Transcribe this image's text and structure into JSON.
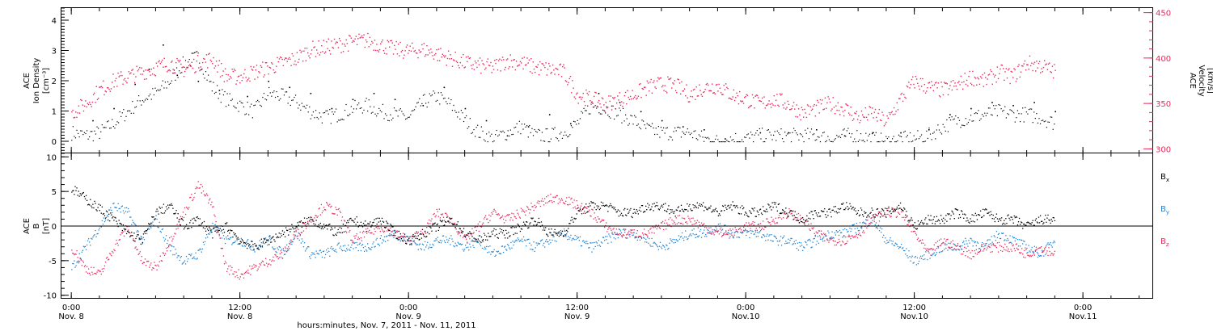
{
  "figure": {
    "x_title": "hours:minutes, Nov.  7, 2011 - Nov. 11, 2011",
    "x_ticks": [
      {
        "hour": 0,
        "top": "0:00",
        "bottom": "Nov. 8"
      },
      {
        "hour": 12,
        "top": "12:00",
        "bottom": "Nov. 8"
      },
      {
        "hour": 24,
        "top": "0:00",
        "bottom": "Nov. 9"
      },
      {
        "hour": 36,
        "top": "12:00",
        "bottom": "Nov. 9"
      },
      {
        "hour": 48,
        "top": "0:00",
        "bottom": "Nov.10"
      },
      {
        "hour": 60,
        "top": "12:00",
        "bottom": "Nov.10"
      },
      {
        "hour": 72,
        "top": "0:00",
        "bottom": "Nov.11"
      }
    ]
  },
  "colors": {
    "density": "#000000",
    "velocity": "#e8285a",
    "bx": "#000000",
    "by": "#1e82d2",
    "bz": "#e8285a"
  },
  "chart_data": [
    {
      "type": "scatter",
      "xlim": [
        -0.7,
        77
      ],
      "ylabel_left": [
        "ACE",
        "Ion Density",
        "[cm⁻³]"
      ],
      "ylim_left": [
        -0.4,
        4.4
      ],
      "yticks_left": [
        0,
        1,
        2,
        3,
        4
      ],
      "ylabel_right": [
        "ACE",
        "Velocity",
        "[km/s]"
      ],
      "ylim_right": [
        295,
        455
      ],
      "yticks_right": [
        300,
        350,
        400,
        450
      ],
      "series": [
        {
          "key": "density",
          "axis": "left",
          "x": [
            0,
            1,
            2,
            3,
            4,
            5,
            6,
            7,
            8,
            9,
            10,
            11,
            12,
            13,
            14,
            15,
            16,
            17,
            18,
            19,
            20,
            21,
            22,
            23,
            24,
            25,
            26,
            27,
            28,
            29,
            30,
            31,
            32,
            33,
            34,
            35,
            36,
            37,
            38,
            39,
            40,
            41,
            42,
            43,
            44,
            45,
            46,
            47,
            48,
            49,
            50,
            51,
            52,
            53,
            54,
            55,
            56,
            57,
            58,
            59,
            60,
            61,
            62,
            63,
            64,
            65,
            66,
            67,
            68,
            69,
            70
          ],
          "y": [
            0.3,
            0.2,
            0.3,
            0.6,
            1.0,
            1.4,
            1.6,
            2.0,
            2.6,
            2.8,
            1.8,
            1.4,
            1.2,
            1.0,
            1.6,
            1.5,
            1.3,
            1.0,
            0.8,
            0.9,
            1.1,
            1.2,
            1.0,
            0.9,
            0.8,
            1.3,
            1.5,
            1.2,
            0.7,
            0.3,
            0.1,
            0.3,
            0.5,
            0.2,
            0.2,
            0.3,
            0.6,
            1.2,
            1.1,
            0.9,
            0.7,
            0.4,
            0.3,
            0.3,
            0.3,
            0.1,
            0.0,
            0.1,
            0.1,
            0.2,
            0.2,
            0.2,
            0.2,
            0.2,
            0.1,
            0.2,
            0.2,
            0.1,
            0.0,
            0.1,
            0.1,
            0.2,
            0.5,
            0.7,
            0.8,
            0.9,
            1.0,
            0.9,
            0.9,
            0.8,
            0.6
          ]
        },
        {
          "key": "velocity",
          "axis": "right",
          "x": [
            0,
            1,
            2,
            3,
            4,
            5,
            6,
            7,
            8,
            9,
            10,
            11,
            12,
            13,
            14,
            15,
            16,
            17,
            18,
            19,
            20,
            21,
            22,
            23,
            24,
            25,
            26,
            27,
            28,
            29,
            30,
            31,
            32,
            33,
            34,
            35,
            36,
            37,
            38,
            39,
            40,
            41,
            42,
            43,
            44,
            45,
            46,
            47,
            48,
            49,
            50,
            51,
            52,
            53,
            54,
            55,
            56,
            57,
            58,
            59,
            60,
            61,
            62,
            63,
            64,
            65,
            66,
            67,
            68,
            69,
            70
          ],
          "y": [
            340,
            350,
            365,
            375,
            380,
            385,
            390,
            395,
            388,
            395,
            400,
            380,
            380,
            385,
            390,
            395,
            400,
            410,
            412,
            415,
            418,
            420,
            415,
            410,
            408,
            410,
            405,
            400,
            395,
            392,
            390,
            398,
            395,
            390,
            388,
            385,
            360,
            355,
            350,
            355,
            360,
            368,
            372,
            370,
            360,
            368,
            370,
            360,
            355,
            350,
            355,
            350,
            340,
            345,
            350,
            345,
            335,
            340,
            330,
            355,
            375,
            368,
            365,
            370,
            380,
            375,
            385,
            380,
            395,
            392,
            385
          ]
        },
        {
          "key": "density_sparse",
          "axis": "left",
          "x": [
            1.5,
            3,
            4.5,
            5.5,
            6.5,
            7.5,
            9,
            10.5,
            12.5,
            14,
            15.5,
            17,
            18.5,
            20,
            21.5,
            23,
            25,
            26.5,
            28,
            29.5,
            31,
            32.5,
            34,
            35.5,
            37.5,
            39,
            40.5,
            42,
            43.5,
            45,
            46.5,
            49,
            51,
            53,
            55,
            57,
            59,
            61,
            62.5,
            64,
            65.5,
            67,
            68.5,
            70
          ],
          "y": [
            0.7,
            1.1,
            1.9,
            2.4,
            3.2,
            2.2,
            2.0,
            1.7,
            1.5,
            2.0,
            1.8,
            1.6,
            1.1,
            1.4,
            1.6,
            1.4,
            1.2,
            1.8,
            1.1,
            0.7,
            0.2,
            0.5,
            0.9,
            0.6,
            1.6,
            1.3,
            1.0,
            0.7,
            0.5,
            0.4,
            0.1,
            0.3,
            0.3,
            0.4,
            0.2,
            0.3,
            0.3,
            0.4,
            0.9,
            1.1,
            1.3,
            1.2,
            1.3,
            1.0
          ]
        }
      ]
    },
    {
      "type": "scatter",
      "xlim": [
        -0.7,
        77
      ],
      "ylabel_left": [
        "ACE",
        "B",
        "[nT]"
      ],
      "ylim_left": [
        -10.5,
        10.5
      ],
      "yticks_left": [
        -10,
        -5,
        0,
        5,
        10
      ],
      "zero_line": true,
      "series": [
        {
          "key": "bx",
          "name": "Bx",
          "legend_main": "B",
          "legend_sub": "x",
          "x": [
            0,
            1,
            2,
            3,
            4,
            5,
            6,
            7,
            8,
            9,
            10,
            11,
            12,
            13,
            14,
            15,
            16,
            17,
            18,
            19,
            20,
            21,
            22,
            23,
            24,
            25,
            26,
            27,
            28,
            29,
            30,
            31,
            32,
            33,
            34,
            35,
            36,
            37,
            38,
            39,
            40,
            41,
            42,
            43,
            44,
            45,
            46,
            47,
            48,
            49,
            50,
            51,
            52,
            53,
            54,
            55,
            56,
            57,
            58,
            59,
            60,
            61,
            62,
            63,
            64,
            65,
            66,
            67,
            68,
            69,
            70
          ],
          "y": [
            5.5,
            4,
            2.5,
            1,
            -1,
            -2,
            2,
            3,
            0,
            1,
            -1,
            0,
            -2,
            -3,
            -2,
            -1,
            0,
            1,
            0,
            -1,
            1,
            0,
            1,
            -1,
            -2,
            -1,
            0,
            1,
            -1,
            -2,
            -1,
            -1,
            0,
            1,
            -1,
            -1,
            2,
            3,
            3,
            2,
            2,
            3,
            3,
            2,
            3,
            3,
            2,
            3,
            2,
            2,
            3,
            2,
            1,
            2,
            2,
            3,
            2,
            2,
            2,
            3,
            0,
            1,
            1,
            2,
            1,
            2,
            1,
            1,
            0,
            1,
            1
          ]
        },
        {
          "key": "by",
          "name": "By",
          "legend_main": "B",
          "legend_sub": "y",
          "x": [
            0,
            1,
            2,
            3,
            4,
            5,
            6,
            7,
            8,
            9,
            10,
            11,
            12,
            13,
            14,
            15,
            16,
            17,
            18,
            19,
            20,
            21,
            22,
            23,
            24,
            25,
            26,
            27,
            28,
            29,
            30,
            31,
            32,
            33,
            34,
            35,
            36,
            37,
            38,
            39,
            40,
            41,
            42,
            43,
            44,
            45,
            46,
            47,
            48,
            49,
            50,
            51,
            52,
            53,
            54,
            55,
            56,
            57,
            58,
            59,
            60,
            61,
            62,
            63,
            64,
            65,
            66,
            67,
            68,
            69,
            70
          ],
          "y": [
            -6,
            -3,
            0,
            3,
            2,
            -2,
            1,
            -3,
            -5,
            -4,
            0,
            -2,
            -2,
            -3,
            -2,
            -4,
            -1,
            -4,
            -4,
            -3,
            -3,
            -3,
            -2,
            -1,
            -2,
            -3,
            -2,
            -2,
            -3,
            -2,
            -4,
            -3,
            -2,
            -3,
            -2,
            -1,
            -2,
            -3,
            -2,
            -1,
            -1,
            -2,
            -3,
            -2,
            -1,
            -1,
            0,
            -1,
            -1,
            -1,
            -2,
            -2,
            -3,
            -2,
            -1,
            -1,
            0,
            1,
            -2,
            -3,
            -5,
            -4,
            -3,
            -3,
            -2,
            -3,
            -1,
            -2,
            -3,
            -4,
            -2
          ]
        },
        {
          "key": "bz",
          "name": "Bz",
          "legend_main": "B",
          "legend_sub": "z",
          "x": [
            0,
            1,
            2,
            3,
            4,
            5,
            6,
            7,
            8,
            9,
            10,
            11,
            12,
            13,
            14,
            15,
            16,
            17,
            18,
            19,
            20,
            21,
            22,
            23,
            24,
            25,
            26,
            27,
            28,
            29,
            30,
            31,
            32,
            33,
            34,
            35,
            36,
            37,
            38,
            39,
            40,
            41,
            42,
            43,
            44,
            45,
            46,
            47,
            48,
            49,
            50,
            51,
            52,
            53,
            54,
            55,
            56,
            57,
            58,
            59,
            60,
            61,
            62,
            63,
            64,
            65,
            66,
            67,
            68,
            69,
            70
          ],
          "y": [
            -3,
            -6,
            -7,
            -3,
            0,
            -5,
            -6,
            -2,
            2,
            6,
            3,
            -6,
            -7,
            -6,
            -5,
            -4,
            -1,
            1,
            3,
            2,
            -2,
            -1,
            0,
            -1,
            -2,
            -1,
            2,
            1,
            -2,
            0,
            2,
            1,
            2,
            3,
            4,
            4,
            3,
            2,
            0,
            -1,
            -1,
            -1,
            0,
            1,
            1,
            0,
            -1,
            -1,
            0,
            0,
            1,
            2,
            1,
            -1,
            -2,
            -2,
            -1,
            1,
            2,
            2,
            -1,
            -4,
            -2,
            -3,
            -4,
            -3,
            -3,
            -3,
            -4,
            -3,
            -4
          ]
        }
      ]
    }
  ]
}
